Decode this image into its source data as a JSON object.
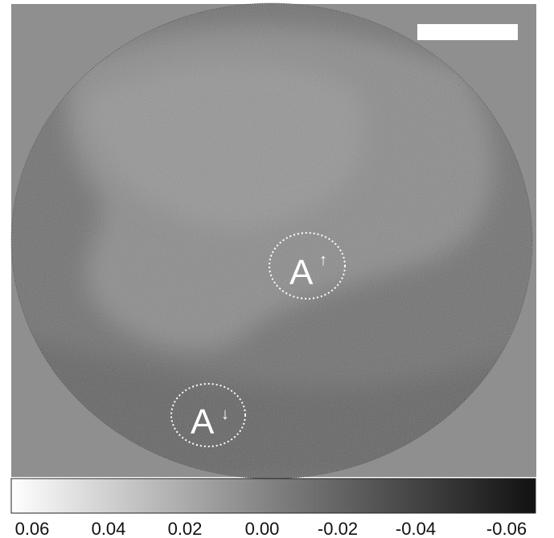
{
  "labels": [
    {
      "letter": "A",
      "arrow": "↑"
    },
    {
      "letter": "A",
      "arrow": "↓"
    }
  ],
  "colorbar": {
    "ticks": [
      "0.06",
      "0.04",
      "0.02",
      "0.00",
      "-0.02",
      "-0.04",
      "-0.06"
    ]
  }
}
